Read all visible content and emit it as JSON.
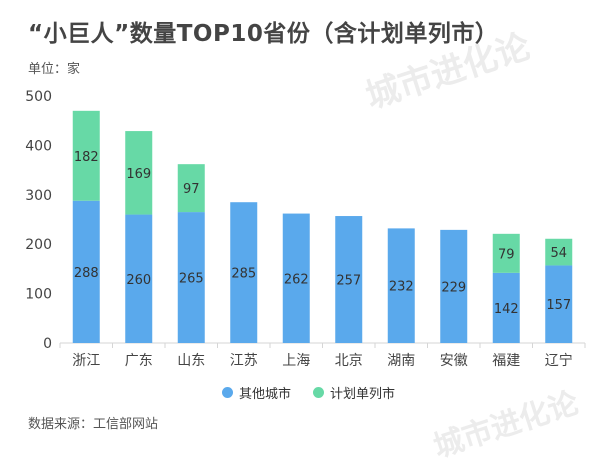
{
  "title": "“小巨人”数量TOP10省份（含计划单列市）",
  "unit_label": "单位：家",
  "watermark": "城市进化论",
  "source": "数据来源：工信部网站",
  "colors": {
    "base": "#5aa9ec",
    "stacked": "#67d9a6",
    "axis": "#d6d6d6"
  },
  "chart_data": {
    "type": "bar",
    "stacked": true,
    "categories": [
      "浙江",
      "广东",
      "山东",
      "江苏",
      "上海",
      "北京",
      "湖南",
      "安徽",
      "福建",
      "辽宁"
    ],
    "series": [
      {
        "name": "其他城市",
        "values": [
          288,
          260,
          265,
          285,
          262,
          257,
          232,
          229,
          142,
          157
        ]
      },
      {
        "name": "计划单列市",
        "values": [
          182,
          169,
          97,
          null,
          null,
          null,
          null,
          null,
          79,
          54
        ]
      }
    ],
    "ylim": [
      0,
      500
    ],
    "yticks": [
      0,
      100,
      200,
      300,
      400,
      500
    ],
    "title": "“小巨人”数量TOP10省份（含计划单列市）",
    "ylabel": "单位：家",
    "legend": "bottom-center"
  }
}
